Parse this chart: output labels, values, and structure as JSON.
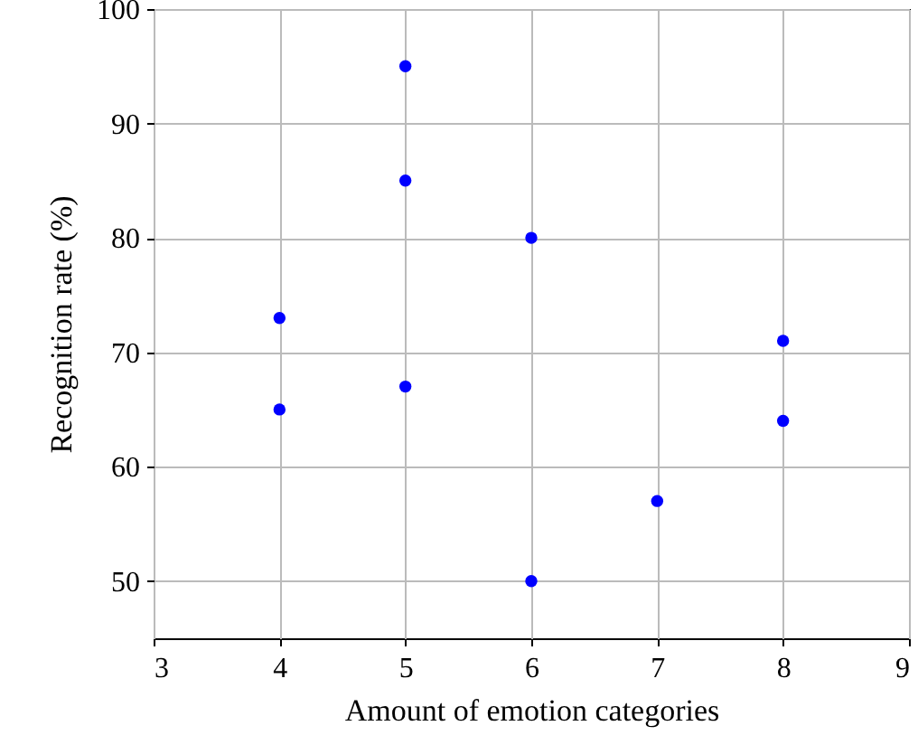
{
  "chart_data": {
    "type": "scatter",
    "xlabel": "Amount of emotion categories",
    "ylabel": "Recognition rate (%)",
    "x": [
      4,
      4,
      5,
      5,
      5,
      6,
      6,
      7,
      8,
      8
    ],
    "values": [
      73,
      65,
      95,
      85,
      67,
      80,
      50,
      57,
      71,
      64
    ],
    "color": "#0000ff",
    "marker": "circle",
    "grid": true,
    "xlim": [
      3,
      9
    ],
    "xticks": [
      3,
      4,
      5,
      6,
      7,
      8,
      9
    ],
    "ylim": [
      45,
      100
    ],
    "yticks": [
      50,
      60,
      70,
      80,
      90,
      100
    ]
  }
}
